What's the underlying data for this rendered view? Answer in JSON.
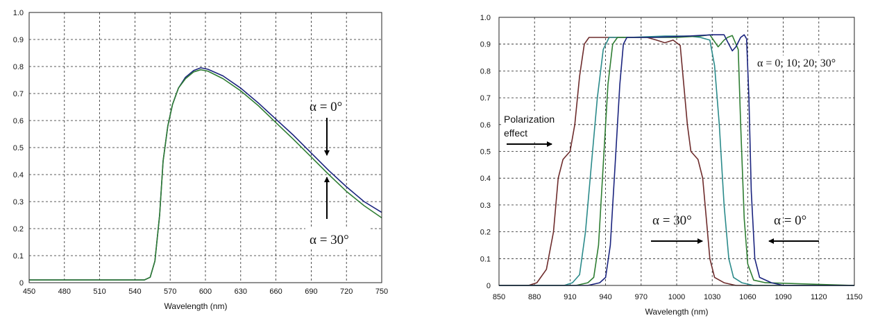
{
  "chart_data": [
    {
      "type": "line",
      "xlabel": "Wavelength (nm)",
      "ylabel": "",
      "xlim": [
        450,
        750
      ],
      "ylim": [
        0,
        1.0
      ],
      "x_ticks": [
        "450",
        "480",
        "510",
        "540",
        "570",
        "600",
        "630",
        "660",
        "690",
        "720",
        "750"
      ],
      "y_ticks": [
        "0",
        "0.1",
        "0.2",
        "0.3",
        "0.4",
        "0.5",
        "0.6",
        "0.7",
        "0.8",
        "0.9",
        "1.0"
      ],
      "grid": true,
      "series": [
        {
          "color": "#1a237e",
          "points": [
            [
              450,
              0.01
            ],
            [
              540,
              0.01
            ],
            [
              548,
              0.01
            ],
            [
              553,
              0.02
            ],
            [
              557,
              0.08
            ],
            [
              561,
              0.25
            ],
            [
              564,
              0.45
            ],
            [
              568,
              0.58
            ],
            [
              572,
              0.66
            ],
            [
              577,
              0.72
            ],
            [
              583,
              0.76
            ],
            [
              590,
              0.785
            ],
            [
              596,
              0.795
            ],
            [
              602,
              0.79
            ],
            [
              615,
              0.765
            ],
            [
              630,
              0.72
            ],
            [
              645,
              0.665
            ],
            [
              660,
              0.605
            ],
            [
              675,
              0.545
            ],
            [
              690,
              0.48
            ],
            [
              705,
              0.415
            ],
            [
              720,
              0.355
            ],
            [
              735,
              0.3
            ],
            [
              750,
              0.26
            ]
          ]
        },
        {
          "color": "#2e7d32",
          "points": [
            [
              450,
              0.01
            ],
            [
              540,
              0.01
            ],
            [
              548,
              0.01
            ],
            [
              553,
              0.02
            ],
            [
              557,
              0.08
            ],
            [
              561,
              0.25
            ],
            [
              564,
              0.45
            ],
            [
              568,
              0.58
            ],
            [
              572,
              0.66
            ],
            [
              577,
              0.72
            ],
            [
              583,
              0.755
            ],
            [
              590,
              0.78
            ],
            [
              596,
              0.788
            ],
            [
              602,
              0.783
            ],
            [
              615,
              0.755
            ],
            [
              630,
              0.71
            ],
            [
              645,
              0.655
            ],
            [
              660,
              0.592
            ],
            [
              675,
              0.53
            ],
            [
              690,
              0.465
            ],
            [
              705,
              0.4
            ],
            [
              720,
              0.338
            ],
            [
              735,
              0.285
            ],
            [
              750,
              0.24
            ]
          ]
        }
      ],
      "annotations": [
        "α = 0°",
        "α = 30°"
      ]
    },
    {
      "type": "line",
      "xlabel": "Wavelength (nm)",
      "ylabel": "",
      "xlim": [
        850,
        1150
      ],
      "ylim": [
        0,
        1.0
      ],
      "x_ticks": [
        "850",
        "880",
        "910",
        "940",
        "970",
        "1000",
        "1030",
        "1060",
        "1090",
        "1120",
        "1150"
      ],
      "y_ticks": [
        "0",
        "0.1",
        "0.2",
        "0.3",
        "0.4",
        "0.5",
        "0.6",
        "0.7",
        "0.8",
        "0.9",
        "1.0"
      ],
      "grid": true,
      "series": [
        {
          "color": "#6d2b2b",
          "points": [
            [
              850,
              0
            ],
            [
              875,
              0
            ],
            [
              882,
              0.01
            ],
            [
              890,
              0.06
            ],
            [
              896,
              0.2
            ],
            [
              900,
              0.4
            ],
            [
              904,
              0.47
            ],
            [
              910,
              0.5
            ],
            [
              914,
              0.6
            ],
            [
              918,
              0.78
            ],
            [
              922,
              0.9
            ],
            [
              926,
              0.925
            ],
            [
              940,
              0.925
            ],
            [
              960,
              0.925
            ],
            [
              975,
              0.925
            ],
            [
              983,
              0.915
            ],
            [
              990,
              0.905
            ],
            [
              997,
              0.915
            ],
            [
              1003,
              0.895
            ],
            [
              1006,
              0.75
            ],
            [
              1009,
              0.6
            ],
            [
              1012,
              0.5
            ],
            [
              1018,
              0.47
            ],
            [
              1022,
              0.4
            ],
            [
              1025,
              0.25
            ],
            [
              1028,
              0.1
            ],
            [
              1032,
              0.03
            ],
            [
              1040,
              0.01
            ],
            [
              1050,
              0
            ],
            [
              1150,
              0
            ]
          ]
        },
        {
          "color": "#2a8a8a",
          "points": [
            [
              850,
              0
            ],
            [
              905,
              0
            ],
            [
              912,
              0.01
            ],
            [
              918,
              0.04
            ],
            [
              923,
              0.2
            ],
            [
              928,
              0.45
            ],
            [
              933,
              0.7
            ],
            [
              938,
              0.88
            ],
            [
              943,
              0.925
            ],
            [
              960,
              0.925
            ],
            [
              990,
              0.93
            ],
            [
              1010,
              0.93
            ],
            [
              1020,
              0.925
            ],
            [
              1028,
              0.915
            ],
            [
              1032,
              0.82
            ],
            [
              1036,
              0.6
            ],
            [
              1040,
              0.3
            ],
            [
              1044,
              0.1
            ],
            [
              1048,
              0.03
            ],
            [
              1055,
              0.01
            ],
            [
              1065,
              0
            ],
            [
              1150,
              0
            ]
          ]
        },
        {
          "color": "#2e7d32",
          "points": [
            [
              850,
              0
            ],
            [
              915,
              0
            ],
            [
              925,
              0.01
            ],
            [
              930,
              0.03
            ],
            [
              934,
              0.15
            ],
            [
              938,
              0.45
            ],
            [
              942,
              0.75
            ],
            [
              946,
              0.9
            ],
            [
              950,
              0.925
            ],
            [
              970,
              0.925
            ],
            [
              1000,
              0.925
            ],
            [
              1020,
              0.93
            ],
            [
              1028,
              0.935
            ],
            [
              1035,
              0.89
            ],
            [
              1040,
              0.915
            ],
            [
              1043,
              0.925
            ],
            [
              1047,
              0.932
            ],
            [
              1052,
              0.88
            ],
            [
              1054,
              0.6
            ],
            [
              1057,
              0.25
            ],
            [
              1060,
              0.08
            ],
            [
              1065,
              0.02
            ],
            [
              1075,
              0.01
            ],
            [
              1150,
              0
            ]
          ]
        },
        {
          "color": "#1a237e",
          "points": [
            [
              850,
              0
            ],
            [
              925,
              0
            ],
            [
              935,
              0.01
            ],
            [
              940,
              0.03
            ],
            [
              944,
              0.15
            ],
            [
              948,
              0.45
            ],
            [
              952,
              0.75
            ],
            [
              955,
              0.9
            ],
            [
              958,
              0.925
            ],
            [
              980,
              0.925
            ],
            [
              1010,
              0.93
            ],
            [
              1030,
              0.935
            ],
            [
              1040,
              0.935
            ],
            [
              1044,
              0.9
            ],
            [
              1047,
              0.875
            ],
            [
              1050,
              0.89
            ],
            [
              1054,
              0.925
            ],
            [
              1057,
              0.935
            ],
            [
              1059,
              0.92
            ],
            [
              1061,
              0.7
            ],
            [
              1063,
              0.35
            ],
            [
              1066,
              0.1
            ],
            [
              1070,
              0.03
            ],
            [
              1080,
              0.01
            ],
            [
              1090,
              0
            ],
            [
              1150,
              0
            ]
          ]
        }
      ],
      "annotations": [
        "α = 0; 10; 20; 30°",
        "Polarization",
        "effect",
        "α = 30°",
        "α = 0°"
      ]
    }
  ]
}
